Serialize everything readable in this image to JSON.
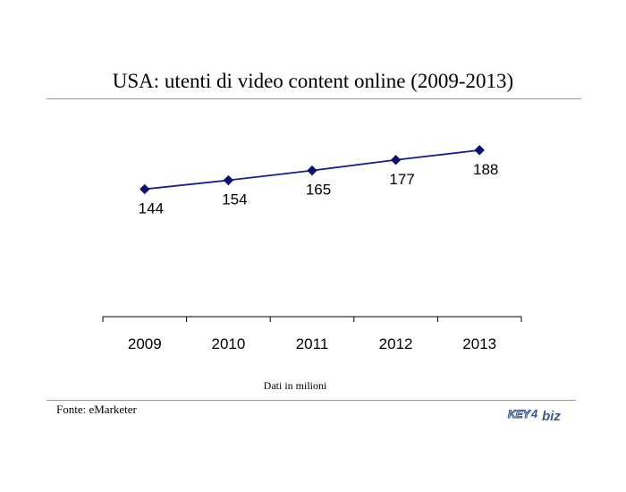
{
  "header": {
    "title": "USA: utenti di video content online (2009-2013)"
  },
  "footer": {
    "note": "Dati in milioni",
    "source": "Fonte: eMarketer",
    "logo_text": {
      "part1": "KEY",
      "part2": "4",
      "part3": "biz"
    }
  },
  "colors": {
    "line": "#1a1f80",
    "marker": "#0d1170",
    "axis": "#000000"
  },
  "chart_data": {
    "type": "line",
    "title": "USA: utenti di video content online (2009-2013)",
    "xlabel": "",
    "ylabel": "",
    "categories": [
      "2009",
      "2010",
      "2011",
      "2012",
      "2013"
    ],
    "series": [
      {
        "values": [
          144,
          154,
          165,
          177,
          188
        ]
      }
    ],
    "data_labels": [
      "144",
      "154",
      "165",
      "177",
      "188"
    ],
    "ylim": [
      0,
      330
    ],
    "grid": false,
    "legend": "none"
  }
}
